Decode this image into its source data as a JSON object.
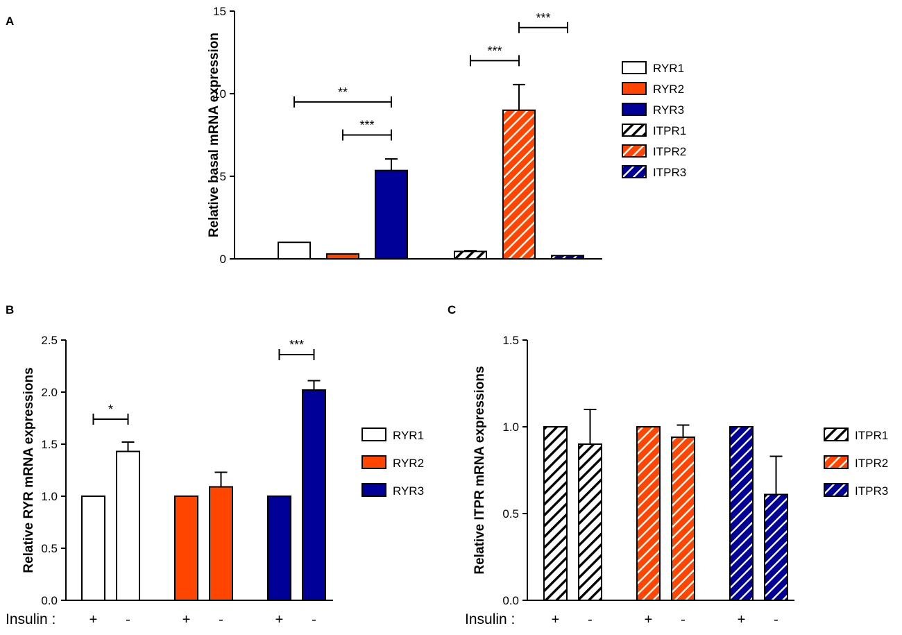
{
  "colors": {
    "white": "#ffffff",
    "orange": "#ff4500",
    "blue": "#000099",
    "black": "#000000"
  },
  "panels": {
    "A": {
      "letter": "A"
    },
    "B": {
      "letter": "B"
    },
    "C": {
      "letter": "C"
    }
  },
  "chart_data": [
    {
      "id": "A",
      "type": "bar",
      "ylabel": "Relative basal mRNA expression",
      "ylim": [
        0,
        15
      ],
      "yticks": [
        0,
        5,
        10,
        15
      ],
      "ytick_labels": [
        "0",
        "5",
        "10",
        "15"
      ],
      "categories": [
        "RYR1",
        "RYR2",
        "RYR3",
        "ITPR1",
        "ITPR2",
        "ITPR3"
      ],
      "values": [
        1.0,
        0.3,
        5.35,
        0.45,
        9.0,
        0.2
      ],
      "errors": [
        0,
        0,
        0.7,
        0.05,
        1.55,
        0
      ],
      "legend": [
        {
          "label": "RYR1",
          "color": "#ffffff",
          "hatch": false
        },
        {
          "label": "RYR2",
          "color": "#ff4500",
          "hatch": false
        },
        {
          "label": "RYR3",
          "color": "#000099",
          "hatch": false
        },
        {
          "label": "ITPR1",
          "color": "#ffffff",
          "hatch": true
        },
        {
          "label": "ITPR2",
          "color": "#ff4500",
          "hatch": true
        },
        {
          "label": "ITPR3",
          "color": "#000099",
          "hatch": true
        }
      ],
      "significance": [
        {
          "from": "RYR1",
          "to": "RYR3",
          "label": "**",
          "y": 9.5
        },
        {
          "from": "RYR2",
          "to": "RYR3",
          "label": "***",
          "y": 7.5
        },
        {
          "from": "ITPR1",
          "to": "ITPR2",
          "label": "***",
          "y": 12.0
        },
        {
          "from": "ITPR2",
          "to": "ITPR3",
          "label": "***",
          "y": 14.0
        }
      ]
    },
    {
      "id": "B",
      "type": "bar",
      "ylabel": "Relative RYR mRNA expressions",
      "ylim": [
        0,
        2.5
      ],
      "yticks": [
        0,
        0.5,
        1.0,
        1.5,
        2.0,
        2.5
      ],
      "ytick_labels": [
        "0.0",
        "0.5",
        "1.0",
        "1.5",
        "2.0",
        "2.5"
      ],
      "xrow_label": "Insulin :",
      "groups": [
        "RYR1",
        "RYR2",
        "RYR3"
      ],
      "conditions": [
        "+",
        "-"
      ],
      "series": [
        {
          "name": "RYR1",
          "values": [
            1.0,
            1.43
          ],
          "errors": [
            0,
            0.09
          ]
        },
        {
          "name": "RYR2",
          "values": [
            1.0,
            1.09
          ],
          "errors": [
            0,
            0.14
          ]
        },
        {
          "name": "RYR3",
          "values": [
            1.0,
            2.02
          ],
          "errors": [
            0,
            0.09
          ]
        }
      ],
      "legend": [
        {
          "label": "RYR1",
          "color": "#ffffff",
          "hatch": false
        },
        {
          "label": "RYR2",
          "color": "#ff4500",
          "hatch": false
        },
        {
          "label": "RYR3",
          "color": "#000099",
          "hatch": false
        }
      ],
      "significance": [
        {
          "group": "RYR1",
          "label": "*",
          "y": 1.74
        },
        {
          "group": "RYR3",
          "label": "***",
          "y": 2.36
        }
      ]
    },
    {
      "id": "C",
      "type": "bar",
      "ylabel": "Relative ITPR mRNA expressions",
      "ylim": [
        0,
        1.5
      ],
      "yticks": [
        0,
        0.5,
        1.0,
        1.5
      ],
      "ytick_labels": [
        "0.0",
        "0.5",
        "1.0",
        "1.5"
      ],
      "xrow_label": "Insulin :",
      "groups": [
        "ITPR1",
        "ITPR2",
        "ITPR3"
      ],
      "conditions": [
        "+",
        "-"
      ],
      "series": [
        {
          "name": "ITPR1",
          "values": [
            1.0,
            0.9
          ],
          "errors": [
            0,
            0.2
          ]
        },
        {
          "name": "ITPR2",
          "values": [
            1.0,
            0.94
          ],
          "errors": [
            0,
            0.07
          ]
        },
        {
          "name": "ITPR3",
          "values": [
            1.0,
            0.61
          ],
          "errors": [
            0,
            0.22
          ]
        }
      ],
      "legend": [
        {
          "label": "ITPR1",
          "color": "#ffffff",
          "hatch": true
        },
        {
          "label": "ITPR2",
          "color": "#ff4500",
          "hatch": true
        },
        {
          "label": "ITPR3",
          "color": "#000099",
          "hatch": true
        }
      ]
    }
  ]
}
